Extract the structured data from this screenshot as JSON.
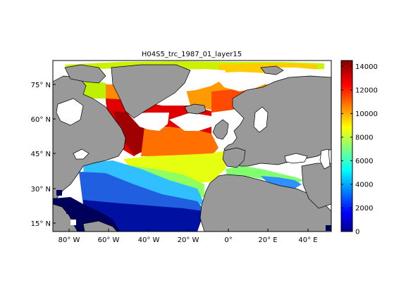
{
  "title": "H04S5_trc_1987_01_layer15",
  "lat_ticks": [
    {
      "value": 75,
      "label": "75° N"
    },
    {
      "value": 60,
      "label": "60° N"
    },
    {
      "value": 45,
      "label": "45° N"
    },
    {
      "value": 30,
      "label": "30° N"
    },
    {
      "value": 15,
      "label": "15° N"
    }
  ],
  "lon_ticks": [
    {
      "value": -80,
      "label": "80° W"
    },
    {
      "value": -60,
      "label": "60° W"
    },
    {
      "value": -40,
      "label": "40° W"
    },
    {
      "value": -20,
      "label": "20° W"
    },
    {
      "value": 0,
      "label": "0°"
    },
    {
      "value": 20,
      "label": "20° E"
    },
    {
      "value": 40,
      "label": "40° E"
    }
  ],
  "extent": {
    "lon": [
      -90,
      50
    ],
    "lat": [
      10,
      85
    ]
  },
  "colorbar": {
    "min": 0,
    "max": 14500,
    "ticks": [
      {
        "value": 0,
        "label": "0"
      },
      {
        "value": 2000,
        "label": "2000"
      },
      {
        "value": 4000,
        "label": "4000"
      },
      {
        "value": 6000,
        "label": "6000"
      },
      {
        "value": 8000,
        "label": "8000"
      },
      {
        "value": 10000,
        "label": "10000"
      },
      {
        "value": 12000,
        "label": "12000"
      },
      {
        "value": 14000,
        "label": "14000"
      }
    ],
    "colormap": "jet"
  },
  "colors": {
    "land": "#999999",
    "no_data": "#ffffff",
    "coast": "#000000"
  }
}
